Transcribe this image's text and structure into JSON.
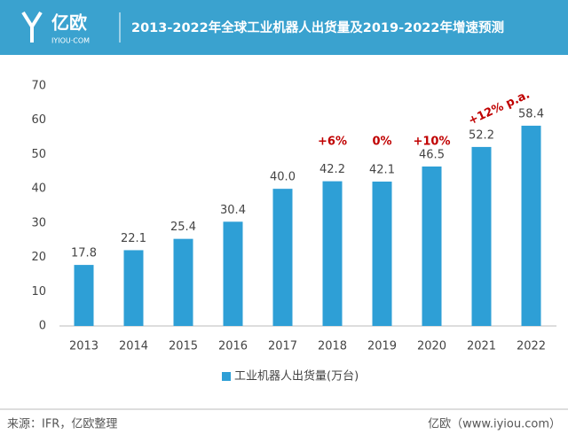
{
  "header": {
    "logo": "亿欧",
    "logo_sub": "IYIOU·COM"
  },
  "chart_data": {
    "type": "bar",
    "title": "2013-2022年全球工业机器人出货量及2019-2022年增速预测",
    "categories": [
      "2013",
      "2014",
      "2015",
      "2016",
      "2017",
      "2018",
      "2019",
      "2020",
      "2021",
      "2022"
    ],
    "series": [
      {
        "name": "工业机器人出货量(万台)",
        "color": "#2e9fd6",
        "values": [
          17.8,
          22.1,
          25.4,
          30.4,
          40.0,
          42.2,
          42.1,
          46.5,
          52.2,
          58.4
        ],
        "value_labels": [
          "17.8",
          "22.1",
          "25.4",
          "30.4",
          "40.0",
          "42.2",
          "42.1",
          "46.5",
          "52.2",
          "58.4"
        ]
      }
    ],
    "growth_labels": [
      null,
      null,
      null,
      null,
      null,
      "+6%",
      "0%",
      "+10%",
      "+12% p.a.",
      null
    ],
    "growth_color": "#c00000",
    "ylim": [
      0,
      70
    ],
    "yticks": [
      0,
      10,
      20,
      30,
      40,
      50,
      60,
      70
    ],
    "grid": false,
    "legend": "bottom"
  },
  "footer": {
    "source": "来源：IFR，亿欧整理",
    "credit": "亿欧（www.iyiou.com）"
  }
}
